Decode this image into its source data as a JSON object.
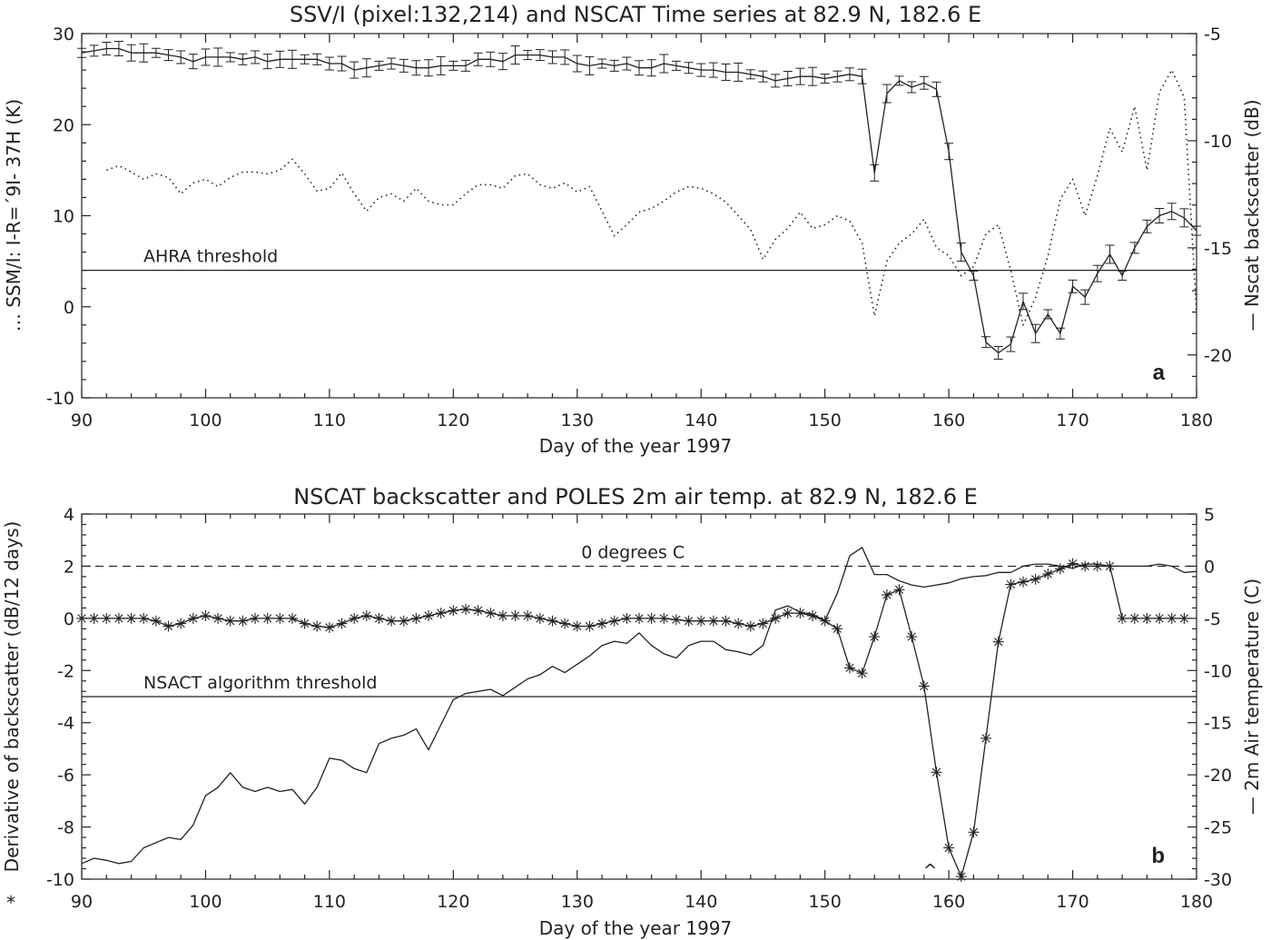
{
  "chart_data": [
    {
      "type": "line",
      "panel_letter": "a",
      "title": "SSV/I (pixel:132,214) and NSCAT Time series at 82.9 N, 182.6 E",
      "xlabel": "Day of the year 1997",
      "ylabel_left": "… SSM/I: I-R=´9I- 37H (K)",
      "ylabel_right": "— Nscat backscatter (dB)",
      "xlim": [
        90,
        180
      ],
      "ylim_left": [
        -10,
        30
      ],
      "ylim_right": [
        -22,
        -5
      ],
      "x_ticks": [
        90,
        100,
        110,
        120,
        130,
        140,
        150,
        160,
        170,
        180
      ],
      "y_ticks_left": [
        -10,
        0,
        10,
        20,
        30
      ],
      "y_ticks_right": [
        -20,
        -15,
        -10,
        -5
      ],
      "threshold": {
        "label": "AHRA threshold",
        "value": 4,
        "axis": "left"
      },
      "series": [
        {
          "axis": "right",
          "style": "solid-errorbars",
          "x": [
            90,
            91,
            92,
            93,
            94,
            95,
            96,
            97,
            98,
            99,
            100,
            101,
            102,
            103,
            104,
            105,
            106,
            107,
            108,
            109,
            110,
            111,
            112,
            113,
            114,
            115,
            116,
            117,
            118,
            119,
            120,
            121,
            122,
            123,
            124,
            125,
            126,
            127,
            128,
            129,
            130,
            131,
            132,
            133,
            134,
            135,
            136,
            137,
            138,
            139,
            140,
            141,
            142,
            143,
            144,
            145,
            146,
            147,
            148,
            149,
            150,
            151,
            152,
            153,
            154,
            155,
            156,
            157,
            158,
            159,
            160,
            161,
            162,
            163,
            164,
            165,
            166,
            167,
            168,
            169,
            170,
            171,
            172,
            173,
            174,
            175,
            176,
            177,
            178,
            179,
            180
          ],
          "y": [
            -5.9,
            -5.8,
            -5.7,
            -5.7,
            -5.9,
            -5.9,
            -5.9,
            -6.0,
            -6.1,
            -6.3,
            -6.1,
            -6.1,
            -6.1,
            -6.2,
            -6.1,
            -6.3,
            -6.2,
            -6.2,
            -6.2,
            -6.2,
            -6.4,
            -6.4,
            -6.7,
            -6.6,
            -6.5,
            -6.4,
            -6.5,
            -6.6,
            -6.6,
            -6.5,
            -6.5,
            -6.5,
            -6.2,
            -6.2,
            -6.3,
            -6.0,
            -6.0,
            -6.0,
            -6.1,
            -6.1,
            -6.4,
            -6.5,
            -6.4,
            -6.5,
            -6.4,
            -6.6,
            -6.6,
            -6.4,
            -6.5,
            -6.6,
            -6.7,
            -6.7,
            -6.8,
            -6.8,
            -6.9,
            -7.0,
            -7.2,
            -7.1,
            -7.0,
            -7.0,
            -7.1,
            -7.0,
            -6.9,
            -7.0,
            -11.5,
            -7.8,
            -7.2,
            -7.5,
            -7.3,
            -7.6,
            -10.5,
            -15.2,
            -16.3,
            -19.4,
            -19.9,
            -19.5,
            -17.5,
            -19.0,
            -18.1,
            -19.0,
            -16.8,
            -17.3,
            -16.2,
            -15.3,
            -16.3,
            -15.0,
            -14.0,
            -13.5,
            -13.3,
            -13.6,
            -14.2
          ]
        },
        {
          "axis": "left",
          "style": "dotted",
          "x": [
            92,
            93,
            94,
            95,
            96,
            97,
            98,
            99,
            100,
            101,
            102,
            103,
            104,
            105,
            106,
            107,
            108,
            109,
            110,
            111,
            112,
            113,
            114,
            115,
            116,
            117,
            118,
            119,
            120,
            121,
            122,
            123,
            124,
            125,
            126,
            127,
            128,
            129,
            130,
            131,
            132,
            133,
            134,
            135,
            136,
            137,
            138,
            139,
            140,
            141,
            142,
            143,
            144,
            145,
            146,
            147,
            148,
            149,
            150,
            151,
            152,
            153,
            154,
            155,
            156,
            157,
            158,
            159,
            160,
            161,
            162,
            163,
            164,
            165,
            166,
            167,
            168,
            169,
            170,
            171,
            172,
            173,
            174,
            175,
            176,
            177,
            178,
            179,
            180
          ],
          "y": [
            15,
            15.5,
            14.8,
            14,
            14.6,
            14.2,
            12.4,
            13.6,
            14,
            13.2,
            14.2,
            14.8,
            14.8,
            14.6,
            15,
            16.2,
            14.6,
            12.7,
            13,
            14.7,
            12.4,
            10.5,
            12,
            12.4,
            11.6,
            13,
            11.6,
            11.2,
            11.2,
            12.4,
            13.4,
            13.4,
            13,
            14.4,
            14.6,
            13.4,
            13,
            13.6,
            12.6,
            13.2,
            10.5,
            7.8,
            9,
            10.4,
            10.8,
            11.6,
            12.6,
            13.2,
            13,
            12.4,
            11.5,
            10,
            8.5,
            5.2,
            7.4,
            8.6,
            10.4,
            8.6,
            9,
            10,
            9.4,
            7,
            -1,
            5,
            7,
            8,
            9.6,
            6.5,
            5.6,
            3.4,
            4.4,
            8,
            9,
            4,
            -2,
            1,
            5.6,
            11.8,
            14,
            10,
            14.4,
            19.6,
            17,
            22,
            15,
            23.6,
            26,
            23,
            -0.7
          ]
        }
      ]
    },
    {
      "type": "line",
      "panel_letter": "b",
      "title": "NSCAT backscatter and POLES 2m air temp. at 82.9 N, 182.6 E",
      "xlabel": "Day of the year 1997",
      "ylabel_left": "Derivative of backscatter (dB/12 days)",
      "ylabel_right": "— 2m Air temperature (C)",
      "left_axis_marker": "*",
      "xlim": [
        90,
        180
      ],
      "ylim_left": [
        -10,
        4
      ],
      "ylim_right": [
        -30,
        5
      ],
      "x_ticks": [
        90,
        100,
        110,
        120,
        130,
        140,
        150,
        160,
        170,
        180
      ],
      "y_ticks_left": [
        -10,
        -8,
        -6,
        -4,
        -2,
        0,
        2,
        4
      ],
      "y_ticks_right": [
        -30,
        -25,
        -20,
        -15,
        -10,
        -5,
        0,
        5
      ],
      "reference_line": {
        "label": "0 degrees C",
        "value": 0,
        "axis": "right",
        "style": "dashed"
      },
      "threshold": {
        "label": "NSACT algorithm threshold",
        "value": -3,
        "axis": "left"
      },
      "marker_annotation": {
        "text": "^",
        "x": 158.5,
        "y": -9.6,
        "axis": "left"
      },
      "series": [
        {
          "axis": "left",
          "style": "solid-stars",
          "x": [
            90,
            91,
            92,
            93,
            94,
            95,
            96,
            97,
            98,
            99,
            100,
            101,
            102,
            103,
            104,
            105,
            106,
            107,
            108,
            109,
            110,
            111,
            112,
            113,
            114,
            115,
            116,
            117,
            118,
            119,
            120,
            121,
            122,
            123,
            124,
            125,
            126,
            127,
            128,
            129,
            130,
            131,
            132,
            133,
            134,
            135,
            136,
            137,
            138,
            139,
            140,
            141,
            142,
            143,
            144,
            145,
            146,
            147,
            148,
            149,
            150,
            151,
            152,
            153,
            154,
            155,
            156,
            157,
            158,
            159,
            160,
            161,
            162,
            163,
            164,
            165,
            166,
            167,
            168,
            169,
            170,
            171,
            172,
            173,
            174,
            175,
            176,
            177,
            178,
            179
          ],
          "y": [
            0,
            0,
            0,
            0,
            0,
            0,
            -0.1,
            -0.3,
            -0.2,
            0,
            0.1,
            0,
            -0.1,
            -0.1,
            0,
            0,
            0,
            0,
            -0.2,
            -0.3,
            -0.35,
            -0.2,
            0,
            0.1,
            0,
            -0.1,
            -0.1,
            0,
            0.1,
            0.2,
            0.3,
            0.35,
            0.3,
            0.2,
            0.1,
            0.1,
            0.1,
            0,
            -0.1,
            -0.2,
            -0.3,
            -0.3,
            -0.2,
            -0.1,
            0,
            0,
            0,
            0,
            -0.05,
            -0.1,
            -0.1,
            -0.1,
            -0.1,
            -0.2,
            -0.3,
            -0.2,
            0,
            0.2,
            0.2,
            0.1,
            -0.1,
            -0.4,
            -1.9,
            -2.1,
            -0.7,
            0.9,
            1.1,
            -0.7,
            -2.6,
            -5.9,
            -8.8,
            -9.9,
            -8.2,
            -4.6,
            -0.9,
            1.3,
            1.4,
            1.5,
            1.7,
            1.9,
            2.1,
            2.0,
            2.0,
            2.0,
            0,
            0,
            0,
            0,
            0,
            0
          ]
        },
        {
          "axis": "right",
          "style": "solid",
          "x": [
            90,
            91,
            92,
            93,
            94,
            95,
            96,
            97,
            98,
            99,
            100,
            101,
            102,
            103,
            104,
            105,
            106,
            107,
            108,
            109,
            110,
            111,
            112,
            113,
            114,
            115,
            116,
            117,
            118,
            119,
            120,
            121,
            122,
            123,
            124,
            125,
            126,
            127,
            128,
            129,
            130,
            131,
            132,
            133,
            134,
            135,
            136,
            137,
            138,
            139,
            140,
            141,
            142,
            143,
            144,
            145,
            146,
            147,
            148,
            149,
            150,
            151,
            152,
            153,
            154,
            155,
            156,
            157,
            158,
            159,
            160,
            161,
            162,
            163,
            164,
            165,
            166,
            167,
            168,
            169,
            170,
            171,
            172,
            173,
            174,
            175,
            176,
            177,
            178,
            179,
            180
          ],
          "y": [
            -28.5,
            -28,
            -28.2,
            -28.5,
            -28.3,
            -27,
            -26.5,
            -26,
            -26.2,
            -24.8,
            -22,
            -21.2,
            -19.8,
            -21.2,
            -21.6,
            -21.2,
            -21.6,
            -21.4,
            -22.8,
            -21.2,
            -18.4,
            -18.6,
            -19.4,
            -19.8,
            -17,
            -16.5,
            -16.2,
            -15.6,
            -17.6,
            -15.2,
            -12.8,
            -12.2,
            -12,
            -11.8,
            -12.4,
            -11.6,
            -10.8,
            -10.4,
            -9.6,
            -10.2,
            -9.4,
            -8.6,
            -7.6,
            -7.2,
            -7.4,
            -6.4,
            -7.6,
            -8.4,
            -8.8,
            -7.6,
            -7.2,
            -7.2,
            -8,
            -8.2,
            -8.5,
            -7.6,
            -4.2,
            -3.8,
            -4.4,
            -4.6,
            -5.2,
            -2.6,
            1,
            1.8,
            -0.8,
            -0.8,
            -1.4,
            -1.8,
            -2,
            -1.8,
            -1.6,
            -1.2,
            -1,
            -0.9,
            -0.6,
            -0.6,
            0,
            0.2,
            0.2,
            0,
            -0.2,
            0.2,
            0.2,
            0,
            0,
            0,
            0,
            0.2,
            0,
            -0.6,
            -0.5
          ]
        }
      ]
    }
  ]
}
